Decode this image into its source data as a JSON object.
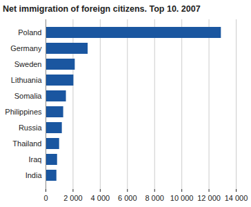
{
  "chart_data": {
    "type": "bar",
    "orientation": "horizontal",
    "title": "Net immigration of foreign citizens. Top 10. 2007",
    "categories": [
      "Poland",
      "Germany",
      "Sweden",
      "Lithuania",
      "Somalia",
      "Philippines",
      "Russia",
      "Thailand",
      "Iraq",
      "India"
    ],
    "values": [
      12900,
      3100,
      2150,
      2050,
      1500,
      1300,
      1200,
      1000,
      850,
      800
    ],
    "color": "#1a56a0",
    "xlim": [
      0,
      14000
    ],
    "xticks": [
      0,
      {
        "value": 2000,
        "label": "2 000"
      },
      {
        "value": 4000,
        "label": "4 000"
      },
      {
        "value": 6000,
        "label": "6 000"
      },
      {
        "value": 8000,
        "label": "8 000"
      },
      {
        "value": 10000,
        "label": "10 000"
      },
      {
        "value": 12000,
        "label": "12 000"
      },
      {
        "value": 14000,
        "label": "14 000"
      }
    ],
    "grid": true
  }
}
